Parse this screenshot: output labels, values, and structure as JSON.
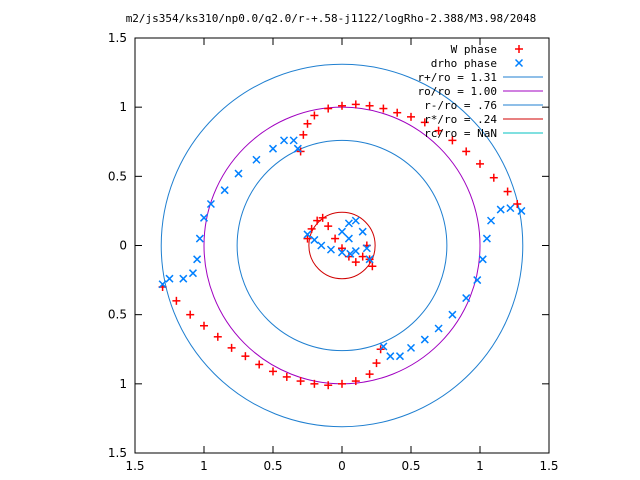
{
  "chart_data": {
    "type": "scatter",
    "title": "m2/js354/ks310/np0.0/q2.0/r-+.58-j1122/logRho-2.388/M3.98/2048",
    "xlim": [
      -1.5,
      1.5
    ],
    "ylim": [
      -1.5,
      1.5
    ],
    "x_ticks": [
      -1.5,
      -1,
      -0.5,
      0,
      0.5,
      1,
      1.5
    ],
    "x_tick_labels": [
      "1.5",
      "1",
      "0.5",
      "0",
      "0.5",
      "1",
      "1.5"
    ],
    "y_ticks": [
      1.5,
      1,
      0.5,
      0,
      -0.5,
      -1,
      -1.5
    ],
    "y_tick_labels": [
      "1.5",
      "1",
      "0.5",
      "0",
      "0.5",
      "1",
      "1.5"
    ],
    "legend_position": "top-right",
    "series": [
      {
        "name": "W phase",
        "marker": "+",
        "color": "#ff0000",
        "points": [
          [
            -1.3,
            -0.3
          ],
          [
            -1.2,
            -0.4
          ],
          [
            -1.1,
            -0.5
          ],
          [
            -1.0,
            -0.58
          ],
          [
            -0.9,
            -0.66
          ],
          [
            -0.8,
            -0.74
          ],
          [
            -0.7,
            -0.8
          ],
          [
            -0.6,
            -0.86
          ],
          [
            -0.5,
            -0.91
          ],
          [
            -0.4,
            -0.95
          ],
          [
            -0.3,
            -0.98
          ],
          [
            -0.2,
            -1.0
          ],
          [
            -0.1,
            -1.01
          ],
          [
            0.0,
            -1.0
          ],
          [
            0.1,
            -0.98
          ],
          [
            0.2,
            -0.93
          ],
          [
            0.25,
            -0.85
          ],
          [
            0.28,
            -0.75
          ],
          [
            -0.3,
            0.68
          ],
          [
            -0.28,
            0.8
          ],
          [
            -0.25,
            0.88
          ],
          [
            -0.2,
            0.94
          ],
          [
            -0.1,
            0.99
          ],
          [
            0.0,
            1.01
          ],
          [
            0.1,
            1.02
          ],
          [
            0.2,
            1.01
          ],
          [
            0.3,
            0.99
          ],
          [
            0.4,
            0.96
          ],
          [
            0.5,
            0.93
          ],
          [
            0.6,
            0.89
          ],
          [
            0.7,
            0.83
          ],
          [
            0.8,
            0.76
          ],
          [
            0.9,
            0.68
          ],
          [
            1.0,
            0.59
          ],
          [
            1.1,
            0.49
          ],
          [
            1.2,
            0.39
          ],
          [
            1.27,
            0.3
          ],
          [
            -0.25,
            0.05
          ],
          [
            -0.22,
            0.12
          ],
          [
            -0.18,
            0.18
          ],
          [
            -0.14,
            0.2
          ],
          [
            -0.1,
            0.14
          ],
          [
            -0.05,
            0.05
          ],
          [
            0.0,
            -0.02
          ],
          [
            0.05,
            -0.08
          ],
          [
            0.1,
            -0.12
          ],
          [
            0.15,
            -0.08
          ],
          [
            0.18,
            0.0
          ],
          [
            0.2,
            -0.1
          ],
          [
            0.22,
            -0.15
          ]
        ]
      },
      {
        "name": "drho phase",
        "marker": "x",
        "color": "#0080ff",
        "points": [
          [
            -1.3,
            -0.28
          ],
          [
            -1.25,
            -0.24
          ],
          [
            -1.15,
            -0.24
          ],
          [
            -1.08,
            -0.2
          ],
          [
            -1.05,
            -0.1
          ],
          [
            -1.03,
            0.05
          ],
          [
            -1.0,
            0.2
          ],
          [
            -0.95,
            0.3
          ],
          [
            -0.85,
            0.4
          ],
          [
            -0.75,
            0.52
          ],
          [
            -0.62,
            0.62
          ],
          [
            -0.5,
            0.7
          ],
          [
            -0.42,
            0.76
          ],
          [
            -0.35,
            0.76
          ],
          [
            -0.32,
            0.7
          ],
          [
            0.3,
            -0.73
          ],
          [
            0.35,
            -0.8
          ],
          [
            0.42,
            -0.8
          ],
          [
            0.5,
            -0.74
          ],
          [
            0.6,
            -0.68
          ],
          [
            0.7,
            -0.6
          ],
          [
            0.8,
            -0.5
          ],
          [
            0.9,
            -0.38
          ],
          [
            0.98,
            -0.25
          ],
          [
            1.02,
            -0.1
          ],
          [
            1.05,
            0.05
          ],
          [
            1.08,
            0.18
          ],
          [
            1.15,
            0.26
          ],
          [
            1.22,
            0.27
          ],
          [
            1.3,
            0.25
          ],
          [
            -0.25,
            0.08
          ],
          [
            -0.2,
            0.04
          ],
          [
            -0.15,
            0.0
          ],
          [
            -0.08,
            -0.03
          ],
          [
            0.0,
            -0.05
          ],
          [
            0.06,
            -0.06
          ],
          [
            0.1,
            -0.04
          ],
          [
            0.05,
            0.05
          ],
          [
            0.0,
            0.1
          ],
          [
            0.05,
            0.16
          ],
          [
            0.1,
            0.18
          ],
          [
            0.15,
            0.1
          ],
          [
            0.18,
            -0.02
          ],
          [
            0.2,
            -0.1
          ]
        ]
      },
      {
        "name": "r+/ro = 1.31",
        "type": "circle",
        "radius": 1.31,
        "color": "#1f7fd0"
      },
      {
        "name": "ro/ro = 1.00",
        "type": "circle",
        "radius": 1.0,
        "color": "#a000c0"
      },
      {
        "name": "r-/ro = .76",
        "type": "circle",
        "radius": 0.76,
        "color": "#1f7fd0"
      },
      {
        "name": "r*/ro = .24",
        "type": "circle",
        "radius": 0.24,
        "color": "#d00000"
      },
      {
        "name": "rc/ro = NaN",
        "type": "circle",
        "radius": null,
        "color": "#00c0c0"
      }
    ]
  }
}
